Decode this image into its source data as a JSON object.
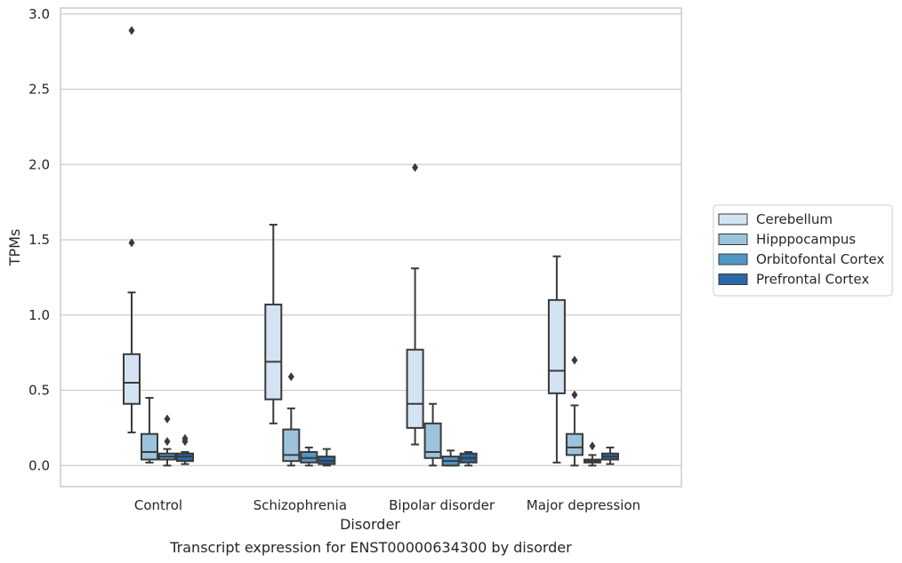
{
  "chart_data": {
    "type": "box",
    "caption": "Transcript expression for ENST00000634300 by disorder",
    "xlabel": "Disorder",
    "ylabel": "TPMs",
    "ylim": [
      -0.14,
      3.04
    ],
    "yticks": [
      0.0,
      0.5,
      1.0,
      1.5,
      2.0,
      2.5,
      3.0
    ],
    "ytick_labels": [
      "0.0",
      "0.5",
      "1.0",
      "1.5",
      "2.0",
      "2.5",
      "3.0"
    ],
    "grid": "horizontal",
    "legend_position": "right",
    "categories": [
      "Control",
      "Schizophrenia",
      "Bipolar disorder",
      "Major depression"
    ],
    "series": [
      {
        "name": "Cerebellum",
        "color": "#d3e3f2",
        "boxes": [
          {
            "whisker_low": 0.22,
            "q1": 0.41,
            "median": 0.55,
            "q3": 0.74,
            "whisker_high": 1.15,
            "outliers": [
              1.48,
              2.89
            ]
          },
          {
            "whisker_low": 0.28,
            "q1": 0.44,
            "median": 0.69,
            "q3": 1.07,
            "whisker_high": 1.6,
            "outliers": []
          },
          {
            "whisker_low": 0.14,
            "q1": 0.25,
            "median": 0.41,
            "q3": 0.77,
            "whisker_high": 1.31,
            "outliers": [
              1.98
            ]
          },
          {
            "whisker_low": 0.02,
            "q1": 0.48,
            "median": 0.63,
            "q3": 1.1,
            "whisker_high": 1.39,
            "outliers": []
          }
        ]
      },
      {
        "name": "Hipppocampus",
        "color": "#9bc3dc",
        "boxes": [
          {
            "whisker_low": 0.02,
            "q1": 0.04,
            "median": 0.09,
            "q3": 0.21,
            "whisker_high": 0.45,
            "outliers": []
          },
          {
            "whisker_low": 0.0,
            "q1": 0.03,
            "median": 0.07,
            "q3": 0.24,
            "whisker_high": 0.38,
            "outliers": [
              0.59
            ]
          },
          {
            "whisker_low": 0.0,
            "q1": 0.05,
            "median": 0.09,
            "q3": 0.28,
            "whisker_high": 0.41,
            "outliers": []
          },
          {
            "whisker_low": 0.0,
            "q1": 0.07,
            "median": 0.12,
            "q3": 0.21,
            "whisker_high": 0.4,
            "outliers": [
              0.47,
              0.7
            ]
          }
        ]
      },
      {
        "name": "Orbitofontal Cortex",
        "color": "#5097c6",
        "boxes": [
          {
            "whisker_low": 0.0,
            "q1": 0.04,
            "median": 0.06,
            "q3": 0.08,
            "whisker_high": 0.11,
            "outliers": [
              0.16,
              0.31
            ]
          },
          {
            "whisker_low": 0.0,
            "q1": 0.02,
            "median": 0.05,
            "q3": 0.09,
            "whisker_high": 0.12,
            "outliers": []
          },
          {
            "whisker_low": 0.0,
            "q1": 0.0,
            "median": 0.03,
            "q3": 0.06,
            "whisker_high": 0.1,
            "outliers": []
          },
          {
            "whisker_low": 0.0,
            "q1": 0.02,
            "median": 0.03,
            "q3": 0.04,
            "whisker_high": 0.07,
            "outliers": [
              0.13
            ]
          }
        ]
      },
      {
        "name": "Prefrontal Cortex",
        "color": "#2b67a6",
        "boxes": [
          {
            "whisker_low": 0.01,
            "q1": 0.03,
            "median": 0.06,
            "q3": 0.08,
            "whisker_high": 0.09,
            "outliers": [
              0.16,
              0.18
            ]
          },
          {
            "whisker_low": 0.0,
            "q1": 0.01,
            "median": 0.03,
            "q3": 0.06,
            "whisker_high": 0.11,
            "outliers": []
          },
          {
            "whisker_low": 0.0,
            "q1": 0.02,
            "median": 0.05,
            "q3": 0.08,
            "whisker_high": 0.09,
            "outliers": []
          },
          {
            "whisker_low": 0.01,
            "q1": 0.04,
            "median": 0.06,
            "q3": 0.08,
            "whisker_high": 0.12,
            "outliers": []
          }
        ]
      }
    ]
  }
}
